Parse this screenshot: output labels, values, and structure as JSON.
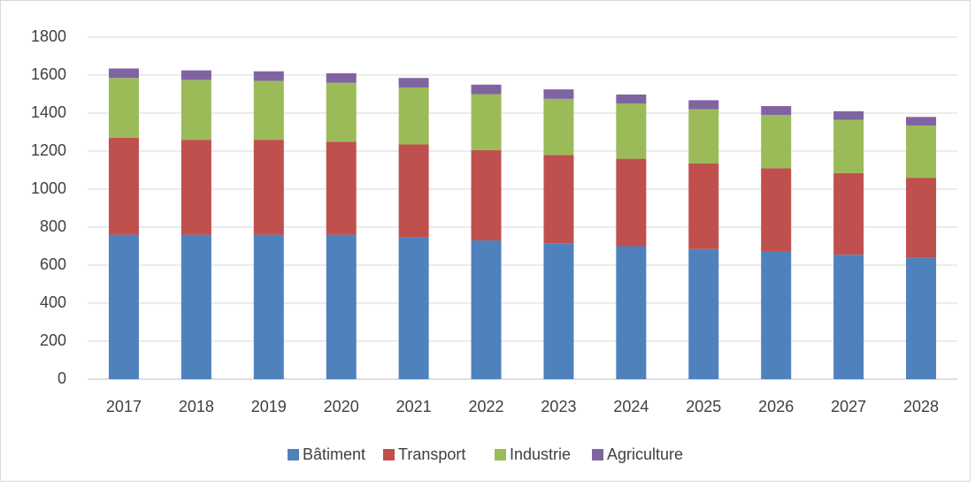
{
  "chart_data": {
    "type": "stacked_bar",
    "categories": [
      "2017",
      "2018",
      "2019",
      "2020",
      "2021",
      "2022",
      "2023",
      "2024",
      "2025",
      "2026",
      "2027",
      "2028"
    ],
    "series": [
      {
        "name": "Bâtiment",
        "color": "#4f81bd",
        "values": [
          760,
          760,
          760,
          760,
          745,
          730,
          715,
          700,
          685,
          670,
          655,
          640
        ]
      },
      {
        "name": "Transport",
        "color": "#c0504d",
        "values": [
          510,
          500,
          500,
          490,
          490,
          475,
          465,
          460,
          450,
          440,
          430,
          420
        ]
      },
      {
        "name": "Industrie",
        "color": "#9bbb59",
        "values": [
          315,
          315,
          310,
          310,
          300,
          295,
          295,
          290,
          285,
          280,
          280,
          275
        ]
      },
      {
        "name": "Agriculture",
        "color": "#8064a2",
        "values": [
          50,
          50,
          50,
          50,
          50,
          50,
          50,
          48,
          48,
          47,
          45,
          45
        ]
      }
    ],
    "ylim": [
      0,
      1800
    ],
    "yticks": [
      0,
      200,
      400,
      600,
      800,
      1000,
      1200,
      1400,
      1600,
      1800
    ],
    "grid": true,
    "legend": "bottom"
  }
}
